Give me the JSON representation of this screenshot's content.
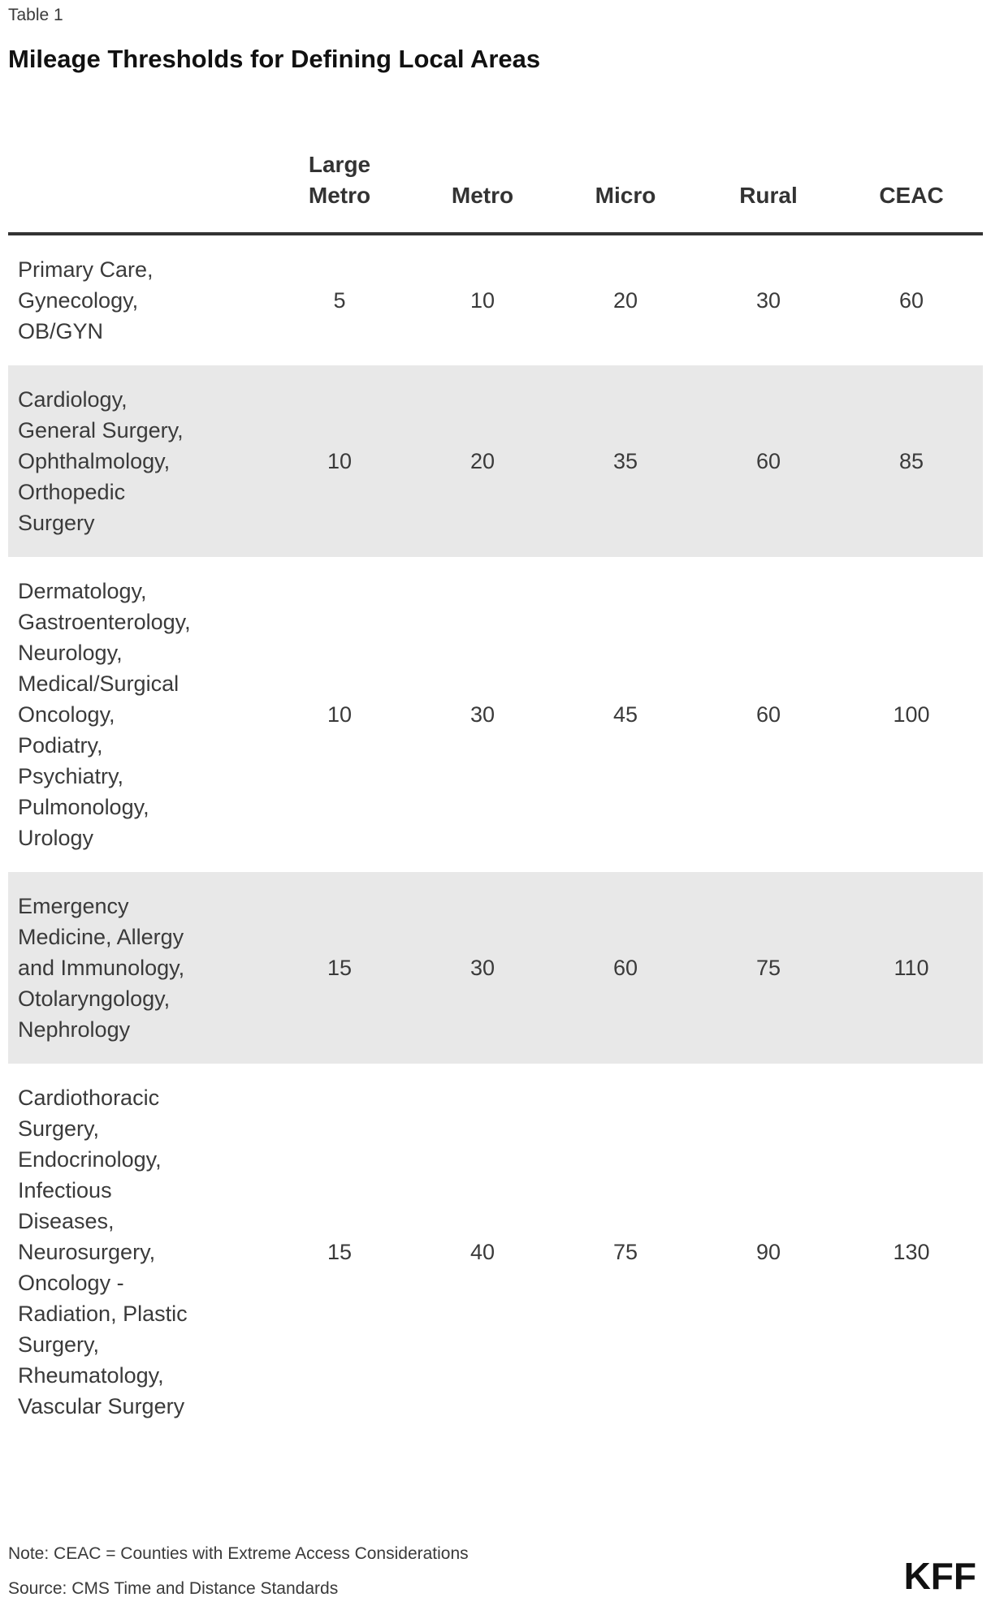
{
  "table_label": "Table 1",
  "title": "Mileage Thresholds for Defining Local Areas",
  "colors": {
    "row_shading": "#e8e8e8",
    "header_border": "#333333",
    "body_text": "#3a3a3a",
    "title_text": "#111111",
    "logo_black": "#111111"
  },
  "table": {
    "headers": [
      "Large\nMetro",
      "Metro",
      "Micro",
      "Rural",
      "CEAC"
    ],
    "row_labels": [
      "Primary Care,\nGynecology,\nOB/GYN",
      "Cardiology,\nGeneral Surgery,\nOphthalmology,\nOrthopedic\nSurgery",
      "Dermatology,\nGastroenterology,\nNeurology,\nMedical/Surgical\nOncology,\nPodiatry,\nPsychiatry,\nPulmonology,\nUrology",
      "Emergency\nMedicine, Allergy\nand Immunology,\nOtolaryngology,\nNephrology",
      "Cardiothoracic\nSurgery,\nEndocrinology,\nInfectious\nDiseases,\nNeurosurgery,\nOncology -\nRadiation, Plastic\nSurgery,\nRheumatology,\nVascular Surgery"
    ]
  },
  "chart_data": {
    "type": "table",
    "title": "Mileage Thresholds for Defining Local Areas",
    "columns": [
      "Large Metro",
      "Metro",
      "Micro",
      "Rural",
      "CEAC"
    ],
    "rows": [
      {
        "specialties": "Primary Care, Gynecology, OB/GYN",
        "values": [
          5,
          10,
          20,
          30,
          60
        ],
        "shaded": false
      },
      {
        "specialties": "Cardiology, General Surgery, Ophthalmology, Orthopedic Surgery",
        "values": [
          10,
          20,
          35,
          60,
          85
        ],
        "shaded": true
      },
      {
        "specialties": "Dermatology, Gastroenterology, Neurology, Medical/Surgical Oncology, Podiatry, Psychiatry, Pulmonology, Urology",
        "values": [
          10,
          30,
          45,
          60,
          100
        ],
        "shaded": false
      },
      {
        "specialties": "Emergency Medicine, Allergy and Immunology, Otolaryngology, Nephrology",
        "values": [
          15,
          30,
          60,
          75,
          110
        ],
        "shaded": true
      },
      {
        "specialties": "Cardiothoracic Surgery, Endocrinology, Infectious Diseases, Neurosurgery, Oncology - Radiation, Plastic Surgery, Rheumatology, Vascular Surgery",
        "values": [
          15,
          40,
          75,
          90,
          130
        ],
        "shaded": false
      }
    ],
    "note": "Note: CEAC = Counties with Extreme Access Considerations",
    "source": "Source: CMS Time and Distance Standards"
  },
  "branding": {
    "logo_text": "KFF"
  }
}
